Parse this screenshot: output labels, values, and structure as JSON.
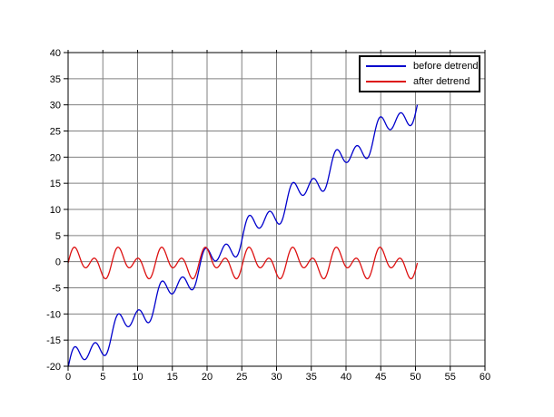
{
  "chart_data": {
    "type": "line",
    "title": "",
    "xlabel": "",
    "ylabel": "",
    "xlim": [
      0,
      60
    ],
    "ylim": [
      -20,
      40
    ],
    "x_ticks": [
      0,
      5,
      10,
      15,
      20,
      25,
      30,
      35,
      40,
      45,
      50,
      55,
      60
    ],
    "y_ticks": [
      -20,
      -15,
      -10,
      -5,
      0,
      5,
      10,
      15,
      20,
      25,
      30,
      35,
      40
    ],
    "grid": true,
    "grid_color": "#808080",
    "axis_color": "#000000",
    "background_color": "#ffffff",
    "x_range": [
      0,
      50.25
    ],
    "sample_step": 0.125,
    "series": [
      {
        "name": "before detrend",
        "color": "#0000cc",
        "line_width": 1.3,
        "model": {
          "trend_slope": 1,
          "trend_intercept": -20,
          "dc": -0.25,
          "sinusoids": [
            {
              "amp": 1.5,
              "freq": 1
            },
            {
              "amp": 1.9,
              "freq": 2
            }
          ]
        },
        "summary": "linear ramp from -20 at x=0 to about +30 at x=50 with superimposed oscillation of amplitude ~3, period ~6.28"
      },
      {
        "name": "after detrend",
        "color": "#dd1111",
        "line_width": 1.3,
        "model": {
          "trend_slope": 0,
          "trend_intercept": 0,
          "dc": -0.25,
          "sinusoids": [
            {
              "amp": 1.5,
              "freq": 1
            },
            {
              "amp": 1.9,
              "freq": 2
            }
          ]
        },
        "summary": "zero-mean oscillation between about -3.3 and +2.8, period ~6.28, alternating deep/shallow troughs"
      }
    ],
    "legend": {
      "position": "top-right",
      "entries": [
        "before detrend",
        "after detrend"
      ]
    }
  }
}
